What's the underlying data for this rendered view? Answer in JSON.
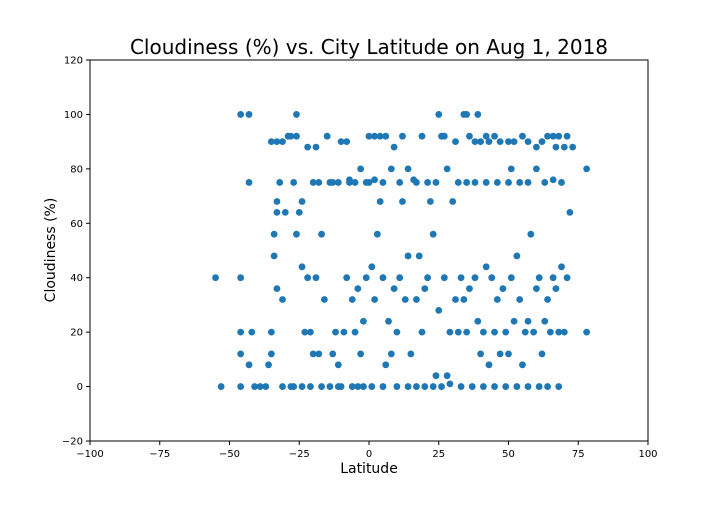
{
  "chart_data": {
    "type": "scatter",
    "title": "Cloudiness (%) vs. City Latitude on Aug 1, 2018",
    "xlabel": "Latitude",
    "ylabel": "Cloudiness (%)",
    "xlim": [
      -100,
      100
    ],
    "ylim": [
      -20,
      120
    ],
    "xticks": [
      -100,
      -75,
      -50,
      -25,
      0,
      25,
      50,
      75,
      100
    ],
    "yticks": [
      -20,
      0,
      20,
      40,
      60,
      80,
      100,
      120
    ],
    "grid": false,
    "legend": "none",
    "marker_color": "#1f77b4",
    "points": [
      [
        -46,
        100
      ],
      [
        -43,
        100
      ],
      [
        -26,
        100
      ],
      [
        25,
        100
      ],
      [
        34,
        100
      ],
      [
        35,
        100
      ],
      [
        39,
        100
      ],
      [
        -35,
        90
      ],
      [
        -33,
        90
      ],
      [
        -31,
        90
      ],
      [
        -29,
        92
      ],
      [
        -28,
        92
      ],
      [
        -26,
        92
      ],
      [
        -22,
        88
      ],
      [
        -19,
        88
      ],
      [
        -15,
        92
      ],
      [
        -10,
        90
      ],
      [
        -8,
        90
      ],
      [
        0,
        92
      ],
      [
        2,
        92
      ],
      [
        4,
        92
      ],
      [
        6,
        92
      ],
      [
        9,
        88
      ],
      [
        12,
        92
      ],
      [
        19,
        92
      ],
      [
        26,
        92
      ],
      [
        27,
        92
      ],
      [
        31,
        90
      ],
      [
        36,
        92
      ],
      [
        38,
        90
      ],
      [
        40,
        90
      ],
      [
        42,
        92
      ],
      [
        43,
        90
      ],
      [
        45,
        92
      ],
      [
        47,
        90
      ],
      [
        50,
        90
      ],
      [
        52,
        90
      ],
      [
        55,
        92
      ],
      [
        57,
        90
      ],
      [
        60,
        88
      ],
      [
        62,
        90
      ],
      [
        64,
        92
      ],
      [
        66,
        92
      ],
      [
        67,
        88
      ],
      [
        68,
        92
      ],
      [
        70,
        88
      ],
      [
        71,
        92
      ],
      [
        73,
        88
      ],
      [
        -55,
        40
      ],
      [
        -53,
        0
      ],
      [
        -46,
        40
      ],
      [
        -46,
        20
      ],
      [
        -46,
        12
      ],
      [
        -46,
        0
      ],
      [
        -43,
        75
      ],
      [
        -42,
        20
      ],
      [
        -43,
        8
      ],
      [
        -41,
        0
      ],
      [
        -39,
        0
      ],
      [
        -37,
        0
      ],
      [
        -36,
        8
      ],
      [
        -35,
        20
      ],
      [
        -35,
        12
      ],
      [
        -34,
        48
      ],
      [
        -33,
        36
      ],
      [
        -32,
        75
      ],
      [
        -31,
        32
      ],
      [
        -34,
        56
      ],
      [
        -33,
        64
      ],
      [
        -33,
        68
      ],
      [
        -30,
        64
      ],
      [
        -28,
        0
      ],
      [
        -27,
        75
      ],
      [
        -26,
        56
      ],
      [
        -25,
        64
      ],
      [
        -24,
        68
      ],
      [
        -24,
        44
      ],
      [
        -23,
        20
      ],
      [
        -22,
        40
      ],
      [
        -21,
        20
      ],
      [
        -20,
        12
      ],
      [
        -19,
        40
      ],
      [
        -18,
        12
      ],
      [
        -17,
        56
      ],
      [
        -16,
        32
      ],
      [
        -13,
        75
      ],
      [
        -13,
        12
      ],
      [
        -12,
        20
      ],
      [
        -11,
        8
      ],
      [
        -10,
        0
      ],
      [
        -9,
        20
      ],
      [
        -8,
        40
      ],
      [
        -7,
        76
      ],
      [
        -6,
        32
      ],
      [
        -5,
        20
      ],
      [
        -4,
        36
      ],
      [
        -3,
        12
      ],
      [
        -2,
        24
      ],
      [
        -1,
        40
      ],
      [
        0,
        75
      ],
      [
        1,
        44
      ],
      [
        2,
        32
      ],
      [
        3,
        56
      ],
      [
        4,
        68
      ],
      [
        5,
        40
      ],
      [
        6,
        8
      ],
      [
        7,
        24
      ],
      [
        8,
        12
      ],
      [
        9,
        36
      ],
      [
        10,
        20
      ],
      [
        11,
        40
      ],
      [
        12,
        68
      ],
      [
        13,
        32
      ],
      [
        14,
        48
      ],
      [
        15,
        12
      ],
      [
        16,
        76
      ],
      [
        17,
        32
      ],
      [
        18,
        48
      ],
      [
        19,
        20
      ],
      [
        20,
        36
      ],
      [
        21,
        40
      ],
      [
        22,
        68
      ],
      [
        23,
        56
      ],
      [
        24,
        4
      ],
      [
        25,
        28
      ],
      [
        27,
        40
      ],
      [
        28,
        4
      ],
      [
        29,
        20
      ],
      [
        30,
        68
      ],
      [
        31,
        32
      ],
      [
        32,
        20
      ],
      [
        33,
        40
      ],
      [
        34,
        32
      ],
      [
        35,
        20
      ],
      [
        36,
        36
      ],
      [
        38,
        40
      ],
      [
        39,
        24
      ],
      [
        40,
        12
      ],
      [
        41,
        20
      ],
      [
        42,
        44
      ],
      [
        43,
        8
      ],
      [
        44,
        40
      ],
      [
        45,
        20
      ],
      [
        46,
        32
      ],
      [
        47,
        12
      ],
      [
        48,
        36
      ],
      [
        49,
        20
      ],
      [
        50,
        12
      ],
      [
        51,
        40
      ],
      [
        52,
        24
      ],
      [
        53,
        48
      ],
      [
        54,
        32
      ],
      [
        55,
        8
      ],
      [
        56,
        20
      ],
      [
        57,
        24
      ],
      [
        58,
        56
      ],
      [
        59,
        20
      ],
      [
        60,
        36
      ],
      [
        61,
        40
      ],
      [
        62,
        12
      ],
      [
        63,
        24
      ],
      [
        64,
        32
      ],
      [
        65,
        20
      ],
      [
        66,
        40
      ],
      [
        67,
        36
      ],
      [
        68,
        20
      ],
      [
        69,
        44
      ],
      [
        70,
        20
      ],
      [
        71,
        40
      ],
      [
        72,
        64
      ],
      [
        78,
        80
      ],
      [
        78,
        20
      ],
      [
        -31,
        0
      ],
      [
        -27,
        0
      ],
      [
        -24,
        0
      ],
      [
        -21,
        0
      ],
      [
        -17,
        0
      ],
      [
        -14,
        0
      ],
      [
        -11,
        0
      ],
      [
        -6,
        0
      ],
      [
        -4,
        0
      ],
      [
        -2,
        0
      ],
      [
        1,
        0
      ],
      [
        5,
        0
      ],
      [
        10,
        0
      ],
      [
        14,
        0
      ],
      [
        17,
        0
      ],
      [
        20,
        0
      ],
      [
        23,
        0
      ],
      [
        26,
        0
      ],
      [
        29,
        1
      ],
      [
        33,
        0
      ],
      [
        37,
        0
      ],
      [
        41,
        0
      ],
      [
        45,
        0
      ],
      [
        49,
        0
      ],
      [
        53,
        0
      ],
      [
        57,
        0
      ],
      [
        61,
        0
      ],
      [
        64,
        0
      ],
      [
        68,
        0
      ],
      [
        -20,
        75
      ],
      [
        -18,
        75
      ],
      [
        -14,
        75
      ],
      [
        -11,
        75
      ],
      [
        -7,
        75
      ],
      [
        -5,
        75
      ],
      [
        -3,
        80
      ],
      [
        -1,
        75
      ],
      [
        2,
        76
      ],
      [
        5,
        75
      ],
      [
        8,
        80
      ],
      [
        11,
        75
      ],
      [
        14,
        80
      ],
      [
        17,
        75
      ],
      [
        21,
        75
      ],
      [
        24,
        75
      ],
      [
        28,
        80
      ],
      [
        32,
        75
      ],
      [
        35,
        75
      ],
      [
        38,
        75
      ],
      [
        42,
        75
      ],
      [
        46,
        75
      ],
      [
        50,
        75
      ],
      [
        51,
        80
      ],
      [
        54,
        75
      ],
      [
        57,
        75
      ],
      [
        60,
        80
      ],
      [
        63,
        75
      ],
      [
        66,
        76
      ],
      [
        69,
        75
      ]
    ]
  }
}
